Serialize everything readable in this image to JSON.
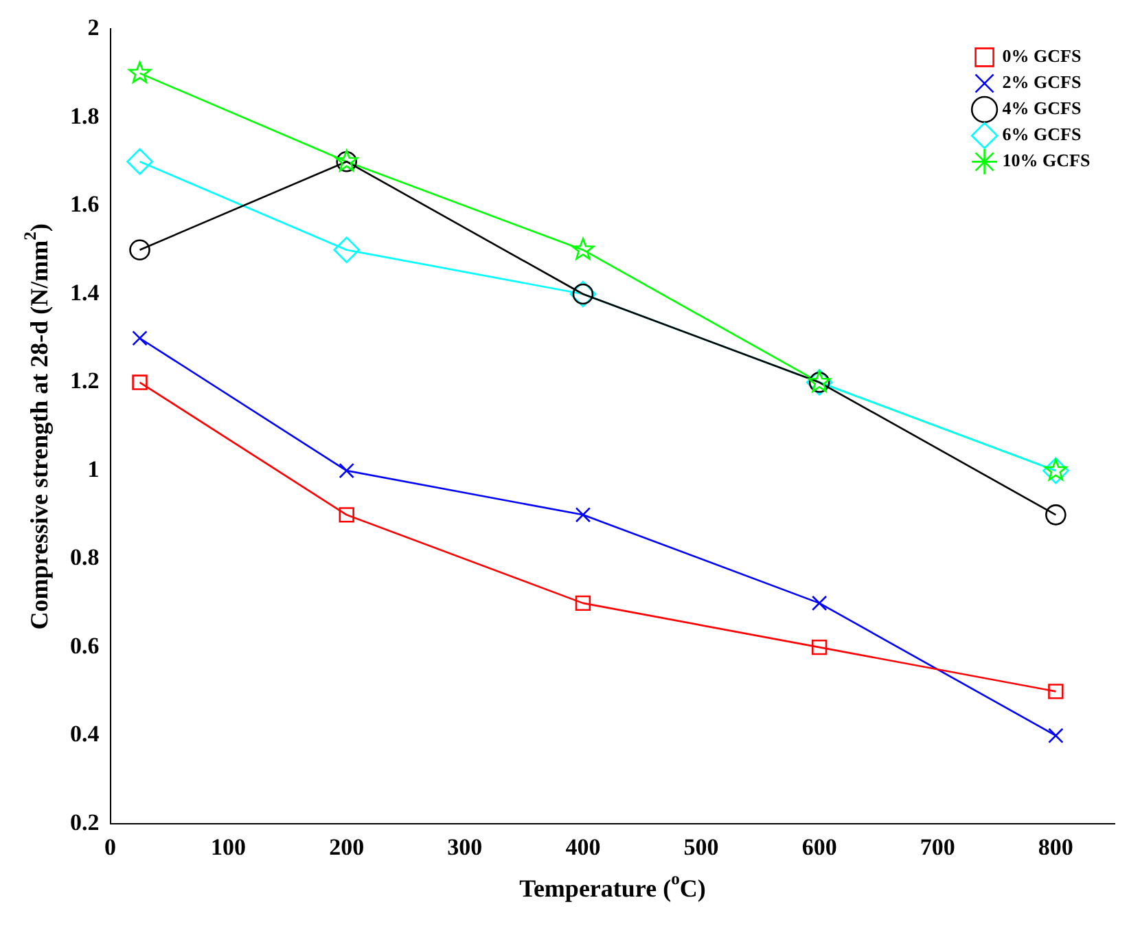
{
  "chart_data": {
    "type": "line",
    "xlabel": "Temperature ($^{o}$C)",
    "ylabel": "Compressive strength at 28-d (N/mm$^{2}$)",
    "x": [
      25,
      200,
      400,
      600,
      800
    ],
    "series": [
      {
        "name": "0% GCFS",
        "color": "#ff0000",
        "marker": "square",
        "values": [
          1.2,
          0.9,
          0.7,
          0.6,
          0.5
        ]
      },
      {
        "name": "2% GCFS",
        "color": "#0000ff",
        "marker": "cross",
        "values": [
          1.3,
          1.0,
          0.9,
          0.7,
          0.4
        ]
      },
      {
        "name": "4% GCFS",
        "color": "#000000",
        "marker": "circle",
        "values": [
          1.5,
          1.7,
          1.4,
          1.2,
          0.9
        ]
      },
      {
        "name": "6% GCFS",
        "color": "#00ffff",
        "marker": "diamond",
        "values": [
          1.7,
          1.5,
          1.4,
          1.2,
          1.0
        ]
      },
      {
        "name": "10% GCFS",
        "color": "#00ff00",
        "marker": "star",
        "values": [
          1.9,
          1.7,
          1.5,
          1.2,
          1.0
        ]
      }
    ],
    "xlim": [
      0,
      850
    ],
    "xticks": [
      0,
      100,
      200,
      300,
      400,
      500,
      600,
      700,
      800
    ],
    "ylim": [
      0.2,
      2
    ],
    "yticks": [
      0.2,
      0.4,
      0.6,
      0.8,
      1,
      1.2,
      1.4,
      1.6,
      1.8,
      2
    ],
    "grid": false,
    "legend": "top right",
    "line_style": "solid"
  }
}
